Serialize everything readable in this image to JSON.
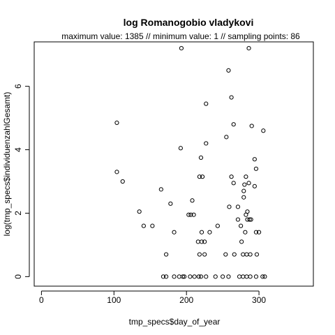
{
  "chart_data": {
    "type": "scatter",
    "title": "log Romanogobio vladykovi",
    "subtitle": "maximum value: 1385  //  minimum value: 1  // sampling points: 86",
    "xlabel": "tmp_specs$day_of_year",
    "ylabel": "log(tmp_specs$individuenzahlGesamt)",
    "xlim": [
      -10,
      375
    ],
    "ylim": [
      -0.3,
      7.4
    ],
    "xticks": [
      0,
      100,
      200,
      300
    ],
    "yticks": [
      0,
      2,
      4,
      6
    ],
    "grid": false,
    "marker": "open-circle",
    "points": [
      {
        "x": 193,
        "y": 7.2
      },
      {
        "x": 286,
        "y": 7.2
      },
      {
        "x": 258,
        "y": 6.5
      },
      {
        "x": 262,
        "y": 5.65
      },
      {
        "x": 227,
        "y": 5.45
      },
      {
        "x": 104,
        "y": 4.85
      },
      {
        "x": 265,
        "y": 4.8
      },
      {
        "x": 290,
        "y": 4.75
      },
      {
        "x": 306,
        "y": 4.6
      },
      {
        "x": 255,
        "y": 4.4
      },
      {
        "x": 227,
        "y": 4.2
      },
      {
        "x": 192,
        "y": 4.05
      },
      {
        "x": 220,
        "y": 3.75
      },
      {
        "x": 294,
        "y": 3.7
      },
      {
        "x": 296,
        "y": 3.4
      },
      {
        "x": 104,
        "y": 3.3
      },
      {
        "x": 218,
        "y": 3.15
      },
      {
        "x": 222,
        "y": 3.15
      },
      {
        "x": 262,
        "y": 3.15
      },
      {
        "x": 282,
        "y": 3.15
      },
      {
        "x": 112,
        "y": 3.0
      },
      {
        "x": 265,
        "y": 2.95
      },
      {
        "x": 286,
        "y": 2.95
      },
      {
        "x": 280,
        "y": 2.9
      },
      {
        "x": 294,
        "y": 2.85
      },
      {
        "x": 165,
        "y": 2.75
      },
      {
        "x": 279,
        "y": 2.7
      },
      {
        "x": 279,
        "y": 2.5
      },
      {
        "x": 208,
        "y": 2.4
      },
      {
        "x": 178,
        "y": 2.3
      },
      {
        "x": 259,
        "y": 2.2
      },
      {
        "x": 271,
        "y": 2.2
      },
      {
        "x": 135,
        "y": 2.05
      },
      {
        "x": 284,
        "y": 2.05
      },
      {
        "x": 203,
        "y": 1.95
      },
      {
        "x": 206,
        "y": 1.95
      },
      {
        "x": 210,
        "y": 1.95
      },
      {
        "x": 282,
        "y": 1.95
      },
      {
        "x": 271,
        "y": 1.8
      },
      {
        "x": 284,
        "y": 1.8
      },
      {
        "x": 287,
        "y": 1.8
      },
      {
        "x": 289,
        "y": 1.8
      },
      {
        "x": 141,
        "y": 1.6
      },
      {
        "x": 153,
        "y": 1.6
      },
      {
        "x": 243,
        "y": 1.6
      },
      {
        "x": 275,
        "y": 1.6
      },
      {
        "x": 183,
        "y": 1.4
      },
      {
        "x": 221,
        "y": 1.4
      },
      {
        "x": 232,
        "y": 1.4
      },
      {
        "x": 281,
        "y": 1.4
      },
      {
        "x": 296,
        "y": 1.4
      },
      {
        "x": 300,
        "y": 1.4
      },
      {
        "x": 216,
        "y": 1.1
      },
      {
        "x": 221,
        "y": 1.1
      },
      {
        "x": 225,
        "y": 1.1
      },
      {
        "x": 276,
        "y": 1.1
      },
      {
        "x": 172,
        "y": 0.7
      },
      {
        "x": 218,
        "y": 0.7
      },
      {
        "x": 225,
        "y": 0.7
      },
      {
        "x": 254,
        "y": 0.7
      },
      {
        "x": 266,
        "y": 0.7
      },
      {
        "x": 278,
        "y": 0.7
      },
      {
        "x": 283,
        "y": 0.7
      },
      {
        "x": 288,
        "y": 0.7
      },
      {
        "x": 297,
        "y": 0.7
      },
      {
        "x": 168,
        "y": 0.0
      },
      {
        "x": 172,
        "y": 0.0
      },
      {
        "x": 183,
        "y": 0.0
      },
      {
        "x": 190,
        "y": 0.0
      },
      {
        "x": 195,
        "y": 0.0
      },
      {
        "x": 197,
        "y": 0.0
      },
      {
        "x": 205,
        "y": 0.0
      },
      {
        "x": 211,
        "y": 0.0
      },
      {
        "x": 217,
        "y": 0.0
      },
      {
        "x": 220,
        "y": 0.0
      },
      {
        "x": 227,
        "y": 0.0
      },
      {
        "x": 240,
        "y": 0.0
      },
      {
        "x": 250,
        "y": 0.0
      },
      {
        "x": 258,
        "y": 0.0
      },
      {
        "x": 273,
        "y": 0.0
      },
      {
        "x": 278,
        "y": 0.0
      },
      {
        "x": 283,
        "y": 0.0
      },
      {
        "x": 288,
        "y": 0.0
      },
      {
        "x": 296,
        "y": 0.0
      },
      {
        "x": 305,
        "y": 0.0
      },
      {
        "x": 308,
        "y": 0.0
      }
    ]
  }
}
